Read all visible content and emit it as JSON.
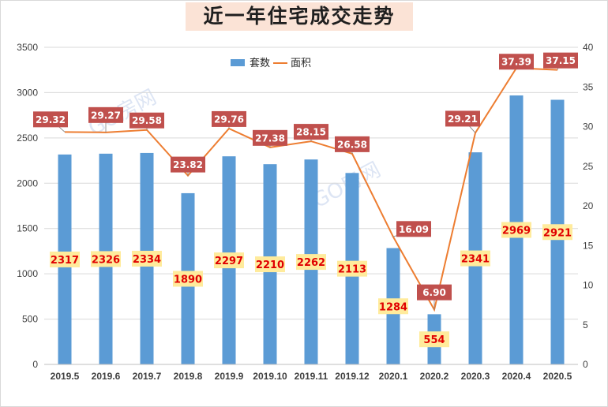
{
  "title": "近一年住宅成交走势",
  "watermark": "GO房网",
  "colors": {
    "bar": "#5b9bd5",
    "line": "#ed7d31",
    "line_label_bg": "#c0504d",
    "bar_label_bg": "#ffeb9c",
    "bar_label_text": "#e00000",
    "grid": "#d9d9d9"
  },
  "chart_data": {
    "type": "bar",
    "categories": [
      "2019.5",
      "2019.6",
      "2019.7",
      "2019.8",
      "2019.9",
      "2019.10",
      "2019.11",
      "2019.12",
      "2020.1",
      "2020.2",
      "2020.3",
      "2020.4",
      "2020.5"
    ],
    "series": [
      {
        "name": "套数",
        "type": "bar",
        "axis": "left",
        "values": [
          2317,
          2326,
          2334,
          1890,
          2297,
          2210,
          2262,
          2113,
          1284,
          554,
          2341,
          2969,
          2921
        ]
      },
      {
        "name": "面积",
        "type": "line",
        "axis": "right",
        "values": [
          29.32,
          29.27,
          29.58,
          23.82,
          29.76,
          27.38,
          28.15,
          26.58,
          16.09,
          6.9,
          29.21,
          37.39,
          37.15
        ],
        "labels": [
          "29.32",
          "29.27",
          "29.58",
          "23.82",
          "29.76",
          "27.38",
          "28.15",
          "26.58",
          "16.09",
          "6.90",
          "29.21",
          "37.39",
          "37.15"
        ]
      }
    ],
    "y_left": {
      "min": 0,
      "max": 3500,
      "step": 500,
      "ticks": [
        "0",
        "500",
        "1000",
        "1500",
        "2000",
        "2500",
        "3000",
        "3500"
      ]
    },
    "y_right": {
      "min": 0,
      "max": 40,
      "step": 5,
      "ticks": [
        "0",
        "5",
        "10",
        "15",
        "20",
        "25",
        "30",
        "35",
        "40"
      ]
    },
    "grid": true,
    "legend": "top-center"
  }
}
